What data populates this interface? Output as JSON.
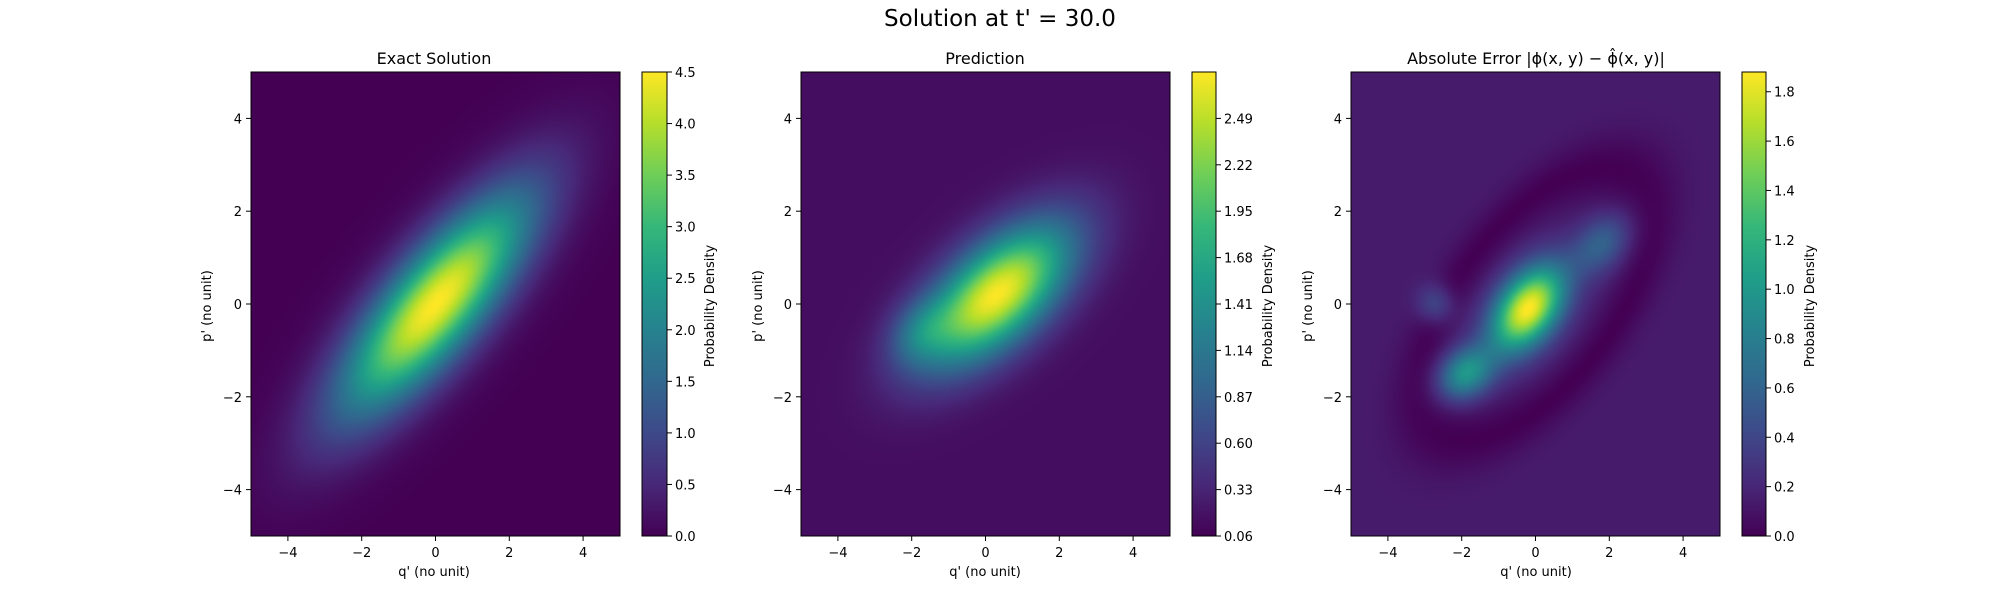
{
  "figure": {
    "suptitle": "Solution at t' = 30.0"
  },
  "colors": {
    "viridis_stops": [
      "#440154",
      "#482878",
      "#3e4989",
      "#31688e",
      "#26828e",
      "#1f9e89",
      "#35b779",
      "#6ece58",
      "#b5de2b",
      "#fde725"
    ]
  },
  "chart_data": [
    {
      "type": "heatmap",
      "title": "Exact Solution",
      "xlabel": "q' (no unit)",
      "ylabel": "p' (no unit)",
      "xlim": [
        -5,
        5
      ],
      "ylim": [
        -5,
        5
      ],
      "xticks": [
        -4,
        -2,
        0,
        2,
        4
      ],
      "yticks": [
        -4,
        -2,
        0,
        2,
        4
      ],
      "xtick_labels": [
        "−4",
        "−2",
        "0",
        "2",
        "4"
      ],
      "ytick_labels": [
        "−4",
        "−2",
        "0",
        "2",
        "4"
      ],
      "colorbar": {
        "label": "Probability Density",
        "range": [
          0,
          4.5
        ],
        "ticks": [
          0.0,
          0.5,
          1.0,
          1.5,
          2.0,
          2.5,
          3.0,
          3.5,
          4.0,
          4.5
        ],
        "tick_labels": [
          "0.0",
          "0.5",
          "1.0",
          "1.5",
          "2.0",
          "2.5",
          "3.0",
          "3.5",
          "4.0",
          "4.5"
        ]
      },
      "field": {
        "background": 0.0,
        "blobs": [
          {
            "center": [
              0.0,
              0.0
            ],
            "sigma_major": 2.3,
            "sigma_minor": 0.78,
            "angle_deg": 42,
            "amplitude": 4.5
          }
        ]
      }
    },
    {
      "type": "heatmap",
      "title": "Prediction",
      "xlabel": "q' (no unit)",
      "ylabel": "p' (no unit)",
      "xlim": [
        -5,
        5
      ],
      "ylim": [
        -5,
        5
      ],
      "xticks": [
        -4,
        -2,
        0,
        2,
        4
      ],
      "yticks": [
        -4,
        -2,
        0,
        2,
        4
      ],
      "xtick_labels": [
        "−4",
        "−2",
        "0",
        "2",
        "4"
      ],
      "ytick_labels": [
        "−4",
        "−2",
        "0",
        "2",
        "4"
      ],
      "colorbar": {
        "label": "Probability Density",
        "range": [
          0.06,
          2.76
        ],
        "ticks": [
          0.06,
          0.33,
          0.6,
          0.87,
          1.14,
          1.41,
          1.68,
          1.95,
          2.22,
          2.49
        ],
        "tick_labels": [
          "0.06",
          "0.33",
          "0.60",
          "0.87",
          "1.14",
          "1.41",
          "1.68",
          "1.95",
          "2.22",
          "2.49"
        ]
      },
      "field": {
        "background": 0.15,
        "blobs": [
          {
            "center": [
              0.3,
              0.2
            ],
            "sigma_major": 1.6,
            "sigma_minor": 0.75,
            "angle_deg": 32,
            "amplitude": 2.6
          },
          {
            "center": [
              -1.8,
              -0.6
            ],
            "sigma_major": 0.6,
            "sigma_minor": 0.45,
            "angle_deg": 30,
            "amplitude": 0.5
          }
        ]
      }
    },
    {
      "type": "heatmap",
      "title": "Absolute Error |ϕ(x, y) − ϕ̂(x, y)|",
      "xlabel": "q' (no unit)",
      "ylabel": "p' (no unit)",
      "xlim": [
        -5,
        5
      ],
      "ylim": [
        -5,
        5
      ],
      "xticks": [
        -4,
        -2,
        0,
        2,
        4
      ],
      "yticks": [
        -4,
        -2,
        0,
        2,
        4
      ],
      "xtick_labels": [
        "−4",
        "−2",
        "0",
        "2",
        "4"
      ],
      "ytick_labels": [
        "−4",
        "−2",
        "0",
        "2",
        "4"
      ],
      "colorbar": {
        "label": "Probability Density",
        "range": [
          0.0,
          1.88
        ],
        "ticks": [
          0.0,
          0.2,
          0.4,
          0.6,
          0.8,
          1.0,
          1.2,
          1.4,
          1.6,
          1.8
        ],
        "tick_labels": [
          "0.0",
          "0.2",
          "0.4",
          "0.6",
          "0.8",
          "1.0",
          "1.2",
          "1.4",
          "1.6",
          "1.8"
        ]
      },
      "field": {
        "background": 0.14,
        "blobs": [
          {
            "center": [
              -0.2,
              -0.1
            ],
            "sigma_major": 0.8,
            "sigma_minor": 0.5,
            "angle_deg": 40,
            "amplitude": 1.75
          },
          {
            "center": [
              -1.9,
              -1.5
            ],
            "sigma_major": 0.55,
            "sigma_minor": 0.38,
            "angle_deg": 20,
            "amplitude": 0.85
          },
          {
            "center": [
              1.8,
              1.3
            ],
            "sigma_major": 0.6,
            "sigma_minor": 0.4,
            "angle_deg": 30,
            "amplitude": 0.45
          },
          {
            "center": [
              -2.7,
              0.0
            ],
            "sigma_major": 0.35,
            "sigma_minor": 0.3,
            "angle_deg": 0,
            "amplitude": 0.35
          }
        ],
        "dark_ring": {
          "center": [
            0.0,
            0.0
          ],
          "radius_major": 3.8,
          "radius_minor": 1.9,
          "angle_deg": 42,
          "width": 0.35,
          "depth": 0.14
        }
      }
    }
  ]
}
